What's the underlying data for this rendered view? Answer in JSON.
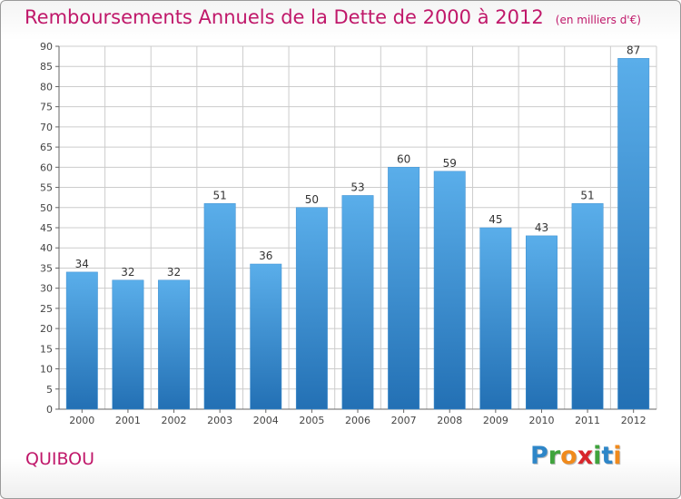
{
  "title": "Remboursements Annuels de la Dette de 2000 à 2012",
  "unit": "(en milliers d'€)",
  "commune": "QUIBOU",
  "logo": {
    "text": "Proxiti",
    "letters": [
      {
        "ch": "P",
        "color": "#2e86c8"
      },
      {
        "ch": "r",
        "color": "#3fa33c"
      },
      {
        "ch": "o",
        "color": "#f08a1c"
      },
      {
        "ch": "x",
        "color": "#d8262c"
      },
      {
        "ch": "i",
        "color": "#3fa33c"
      },
      {
        "ch": "t",
        "color": "#2e86c8"
      },
      {
        "ch": "i",
        "color": "#f08a1c"
      }
    ]
  },
  "colors": {
    "title": "#c0186a",
    "bar_light": "#5aaeea",
    "bar_dark": "#2370b4",
    "grid": "#cccccc",
    "axis": "#666666"
  },
  "chart_data": {
    "type": "bar",
    "categories": [
      "2000",
      "2001",
      "2002",
      "2003",
      "2004",
      "2005",
      "2006",
      "2007",
      "2008",
      "2009",
      "2010",
      "2011",
      "2012"
    ],
    "values": [
      34,
      32,
      32,
      51,
      36,
      50,
      53,
      60,
      59,
      45,
      43,
      51,
      87
    ],
    "ylim": [
      0,
      90
    ],
    "yticks": [
      0,
      5,
      10,
      15,
      20,
      25,
      30,
      35,
      40,
      45,
      50,
      55,
      60,
      65,
      70,
      75,
      80,
      85,
      90
    ],
    "grid": true,
    "data_labels": true
  }
}
